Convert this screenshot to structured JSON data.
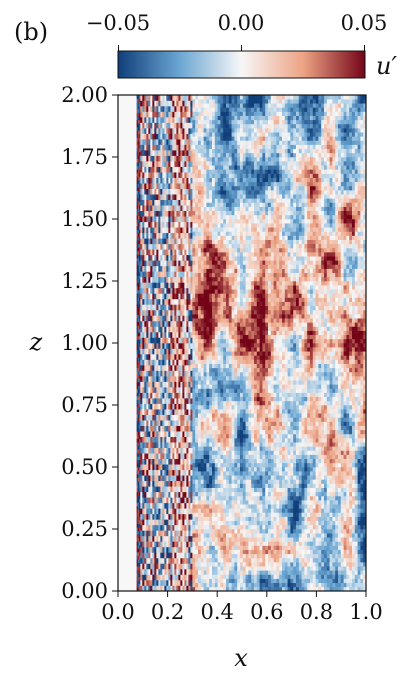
{
  "panel_label": "(b)",
  "colorbar": {
    "label": "u′",
    "min": -0.05,
    "max": 0.05,
    "ticks": [
      "−0.05",
      "0.00",
      "0.05"
    ],
    "colormap": "RdBu_r",
    "colors": {
      "low": "#103f7a",
      "mid_low": "#6ba6d2",
      "zero": "#f7f7f7",
      "mid_high": "#eda384",
      "high": "#730418"
    }
  },
  "chart_data": {
    "type": "heatmap",
    "title": "",
    "xlabel": "x",
    "ylabel": "z",
    "xlim": [
      0.0,
      1.0
    ],
    "ylim": [
      0.0,
      2.0
    ],
    "xticks": [
      "0.0",
      "0.2",
      "0.4",
      "0.6",
      "0.8",
      "1.0"
    ],
    "yticks": [
      "0.00",
      "0.25",
      "0.50",
      "0.75",
      "1.00",
      "1.25",
      "1.50",
      "1.75",
      "2.00"
    ],
    "field": "u′",
    "value_range": [
      -0.05,
      0.05
    ],
    "regions": [
      {
        "x_range": [
          0.0,
          0.075
        ],
        "description": "near-zero fluctuation",
        "mean_value": 0.0
      },
      {
        "x_range": [
          0.075,
          0.09
        ],
        "description": "strong alternating streaks",
        "mean_value": 0.0
      },
      {
        "x_range": [
          0.09,
          0.3
        ],
        "description": "fine-scale streaky turbulence",
        "mean_value": 0.0
      },
      {
        "x_range": [
          0.3,
          1.0
        ],
        "description": "large-scale turbulent patches",
        "mean_value": 0.0
      }
    ]
  }
}
